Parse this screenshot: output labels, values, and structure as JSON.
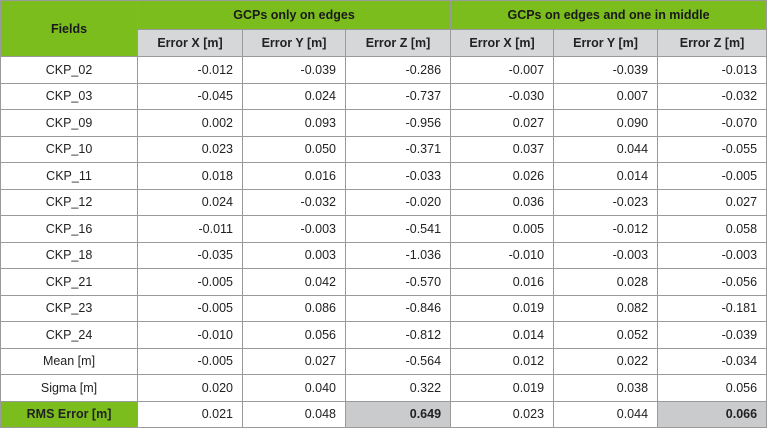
{
  "table": {
    "header": {
      "fields": "Fields",
      "groups": [
        "GCPs only on edges",
        "GCPs on edges and one in middle"
      ],
      "columns": [
        "Error X [m]",
        "Error Y [m]",
        "Error Z [m]",
        "Error X [m]",
        "Error Y [m]",
        "Error Z [m]"
      ]
    },
    "rows": [
      [
        "CKP_02",
        "-0.012",
        "-0.039",
        "-0.286",
        "-0.007",
        "-0.039",
        "-0.013"
      ],
      [
        "CKP_03",
        "-0.045",
        "0.024",
        "-0.737",
        "-0.030",
        "0.007",
        "-0.032"
      ],
      [
        "CKP_09",
        "0.002",
        "0.093",
        "-0.956",
        "0.027",
        "0.090",
        "-0.070"
      ],
      [
        "CKP_10",
        "0.023",
        "0.050",
        "-0.371",
        "0.037",
        "0.044",
        "-0.055"
      ],
      [
        "CKP_11",
        "0.018",
        "0.016",
        "-0.033",
        "0.026",
        "0.014",
        "-0.005"
      ],
      [
        "CKP_12",
        "0.024",
        "-0.032",
        "-0.020",
        "0.036",
        "-0.023",
        "0.027"
      ],
      [
        "CKP_16",
        "-0.011",
        "-0.003",
        "-0.541",
        "0.005",
        "-0.012",
        "0.058"
      ],
      [
        "CKP_18",
        "-0.035",
        "0.003",
        "-1.036",
        "-0.010",
        "-0.003",
        "-0.003"
      ],
      [
        "CKP_21",
        "-0.005",
        "0.042",
        "-0.570",
        "0.016",
        "0.028",
        "-0.056"
      ],
      [
        "CKP_23",
        "-0.005",
        "0.086",
        "-0.846",
        "0.019",
        "0.082",
        "-0.181"
      ],
      [
        "CKP_24",
        "-0.010",
        "0.056",
        "-0.812",
        "0.014",
        "0.052",
        "-0.039"
      ],
      [
        "Mean [m]",
        "-0.005",
        "0.027",
        "-0.564",
        "0.012",
        "0.022",
        "-0.034"
      ],
      [
        "Sigma [m]",
        "0.020",
        "0.040",
        "0.322",
        "0.019",
        "0.038",
        "0.056"
      ],
      [
        "RMS Error [m]",
        "0.021",
        "0.048",
        "0.649",
        "0.023",
        "0.044",
        "0.066"
      ]
    ]
  }
}
